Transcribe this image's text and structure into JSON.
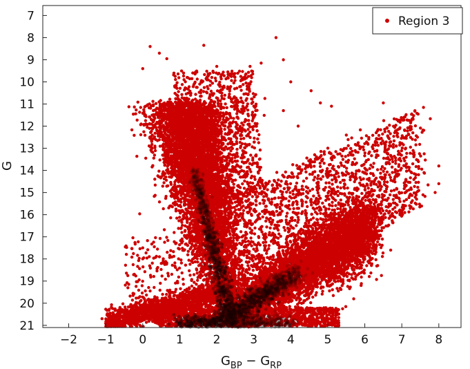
{
  "chart_data": {
    "type": "scatter",
    "xlabel": "G",
    "xlabel_sub1": "BP",
    "xlabel_minus": " − ",
    "xlabel_g2": "G",
    "xlabel_sub2": "RP",
    "ylabel": "G",
    "xlim": [
      -2.7,
      8.6
    ],
    "ylim": [
      21.1,
      6.55
    ],
    "y_inverted": true,
    "x_ticks": [
      -2,
      -1,
      0,
      1,
      2,
      3,
      4,
      5,
      6,
      7,
      8
    ],
    "y_ticks": [
      7,
      8,
      9,
      10,
      11,
      12,
      13,
      14,
      15,
      16,
      17,
      18,
      19,
      20,
      21
    ],
    "grid": false,
    "legend_position": "top-right",
    "series": [
      {
        "name": "Region 3",
        "color": "#cc0000",
        "core_color": "#1a0000",
        "density": "very dense; main sequence from (≈2.4, 21) to (≈1.0, 11); red giant branch from (≈2.3, 20) to (≈6.0, 16.5)",
        "points": [
          [
            0.2,
            8.4
          ],
          [
            1.65,
            8.35
          ],
          [
            0.45,
            8.7
          ],
          [
            0.65,
            8.95
          ],
          [
            0.0,
            9.4
          ],
          [
            2.0,
            9.3
          ],
          [
            2.9,
            9.3
          ],
          [
            3.2,
            9.15
          ],
          [
            3.8,
            9.0
          ],
          [
            2.3,
            9.55
          ],
          [
            2.9,
            10.1
          ],
          [
            4.0,
            10.0
          ],
          [
            4.55,
            10.4
          ],
          [
            3.3,
            10.75
          ],
          [
            4.8,
            10.95
          ],
          [
            6.5,
            10.95
          ],
          [
            3.8,
            11.3
          ],
          [
            5.1,
            11.1
          ],
          [
            4.2,
            12.0
          ],
          [
            5.5,
            12.4
          ],
          [
            6.45,
            12.8
          ],
          [
            6.85,
            12.9
          ],
          [
            7.3,
            13.25
          ],
          [
            7.45,
            13.6
          ],
          [
            8.0,
            13.8
          ],
          [
            7.6,
            14.1
          ],
          [
            7.1,
            14.5
          ],
          [
            8.0,
            14.6
          ],
          [
            7.4,
            15.3
          ],
          [
            7.1,
            15.6
          ],
          [
            7.9,
            15.0
          ],
          [
            6.95,
            16.0
          ],
          [
            6.75,
            16.35
          ],
          [
            6.2,
            16.8
          ],
          [
            6.4,
            17.35
          ],
          [
            6.7,
            17.6
          ],
          [
            6.35,
            18.3
          ],
          [
            6.45,
            18.75
          ],
          [
            5.9,
            19.2
          ],
          [
            5.7,
            19.8
          ],
          [
            5.4,
            20.25
          ],
          [
            0.0,
            17.5
          ],
          [
            -0.4,
            19.3
          ],
          [
            -0.9,
            20.75
          ],
          [
            -1.1,
            20.7
          ],
          [
            -0.7,
            21.0
          ],
          [
            3.6,
            8.0
          ],
          [
            1.2,
            9.8
          ],
          [
            5.6,
            13.2
          ],
          [
            6.0,
            14.1
          ]
        ]
      }
    ]
  }
}
